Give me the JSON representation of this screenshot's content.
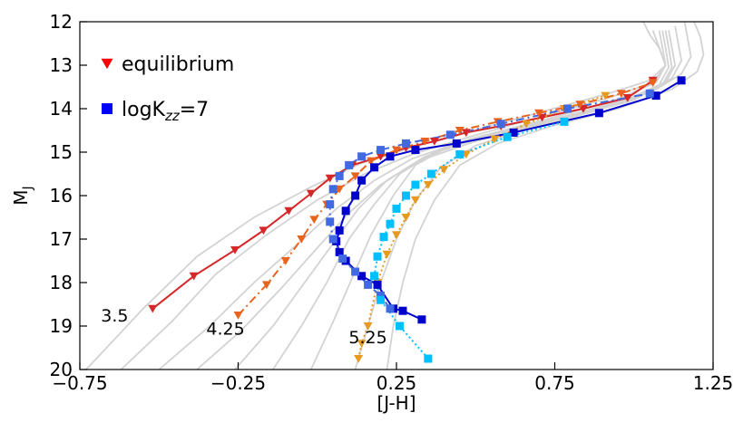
{
  "chart_data": {
    "type": "line",
    "xlabel": "[J-H]",
    "ylabel": "M_J",
    "xlim": [
      -0.75,
      1.25
    ],
    "ylim": [
      20,
      12
    ],
    "y_inverted": true,
    "grid": false,
    "legend_position": "top-left",
    "xticks": [
      -0.75,
      -0.25,
      0.25,
      0.75,
      1.25
    ],
    "xtick_labels": [
      "−0.75",
      "−0.25",
      "0.25",
      "0.75",
      "1.25"
    ],
    "yticks": [
      12,
      13,
      14,
      15,
      16,
      17,
      18,
      19,
      20
    ],
    "ytick_labels": [
      "12",
      "13",
      "14",
      "15",
      "16",
      "17",
      "18",
      "19",
      "20"
    ],
    "legend": [
      {
        "label": "equilibrium",
        "marker": "triangle-down",
        "color": "#ff0000"
      },
      {
        "label": "logK",
        "sub": "zz",
        "suffix": "=7",
        "marker": "square",
        "color": "#0000ff"
      }
    ],
    "annotations": [
      {
        "text": "3.5",
        "x": -0.64,
        "y": 18.9
      },
      {
        "text": "4.25",
        "x": -0.29,
        "y": 19.2
      },
      {
        "text": "5.25",
        "x": 0.16,
        "y": 19.4
      }
    ],
    "background_tracks": [
      {
        "color": "#d3d3d3",
        "x": [
          -0.73,
          -0.55,
          -0.38,
          -0.2,
          -0.02,
          0.14,
          0.32,
          0.52,
          0.72,
          0.92,
          1.05,
          1.1,
          1.08,
          1.05,
          1.03
        ],
        "y": [
          20,
          18.6,
          17.4,
          16.5,
          15.8,
          15.25,
          14.85,
          14.45,
          14.05,
          13.65,
          13.35,
          13.0,
          12.6,
          12.3,
          12.0
        ]
      },
      {
        "color": "#d3d3d3",
        "x": [
          -0.62,
          -0.46,
          -0.32,
          -0.16,
          0.0,
          0.15,
          0.3,
          0.48,
          0.7,
          0.92,
          1.06,
          1.1,
          1.08,
          1.06
        ],
        "y": [
          20,
          18.9,
          17.8,
          16.9,
          16.1,
          15.5,
          15.05,
          14.65,
          14.2,
          13.75,
          13.4,
          13.0,
          12.6,
          12.2
        ]
      },
      {
        "color": "#d3d3d3",
        "x": [
          -0.5,
          -0.34,
          -0.2,
          -0.06,
          0.06,
          0.18,
          0.3,
          0.48,
          0.72,
          0.94,
          1.07,
          1.1,
          1.09,
          1.08
        ],
        "y": [
          20,
          19.0,
          18.0,
          17.1,
          16.3,
          15.65,
          15.15,
          14.7,
          14.25,
          13.8,
          13.4,
          13.0,
          12.6,
          12.2
        ]
      },
      {
        "color": "#d3d3d3",
        "x": [
          -0.38,
          -0.24,
          -0.11,
          0.0,
          0.1,
          0.2,
          0.32,
          0.5,
          0.74,
          0.96,
          1.08,
          1.11,
          1.1,
          1.09
        ],
        "y": [
          20,
          19.1,
          18.1,
          17.2,
          16.4,
          15.75,
          15.2,
          14.75,
          14.3,
          13.85,
          13.45,
          13.05,
          12.6,
          12.2
        ]
      },
      {
        "color": "#d3d3d3",
        "x": [
          -0.26,
          -0.14,
          -0.04,
          0.05,
          0.13,
          0.22,
          0.34,
          0.52,
          0.76,
          0.98,
          1.09,
          1.12,
          1.11,
          1.1
        ],
        "y": [
          20,
          19.0,
          18.0,
          17.1,
          16.3,
          15.65,
          15.1,
          14.65,
          14.25,
          13.85,
          13.45,
          13.05,
          12.6,
          12.2
        ]
      },
      {
        "color": "#d3d3d3",
        "x": [
          -0.14,
          -0.05,
          0.03,
          0.1,
          0.18,
          0.26,
          0.37,
          0.55,
          0.78,
          1.0,
          1.1,
          1.13,
          1.12,
          1.11
        ],
        "y": [
          20,
          19.0,
          18.0,
          17.0,
          16.2,
          15.5,
          15.0,
          14.6,
          14.2,
          13.8,
          13.4,
          13.0,
          12.6,
          12.2
        ]
      },
      {
        "color": "#d3d3d3",
        "x": [
          -0.02,
          0.05,
          0.11,
          0.17,
          0.24,
          0.31,
          0.42,
          0.6,
          0.82,
          1.02,
          1.12,
          1.15,
          1.14,
          1.13
        ],
        "y": [
          20,
          18.9,
          17.9,
          16.9,
          16.0,
          15.3,
          14.85,
          14.5,
          14.1,
          13.7,
          13.3,
          12.9,
          12.5,
          12.1
        ]
      },
      {
        "color": "#d3d3d3",
        "x": [
          0.12,
          0.16,
          0.2,
          0.25,
          0.31,
          0.39,
          0.5,
          0.67,
          0.88,
          1.06,
          1.15,
          1.18,
          1.17,
          1.16
        ],
        "y": [
          20,
          19.0,
          18.0,
          17.0,
          16.1,
          15.35,
          14.85,
          14.45,
          14.05,
          13.6,
          13.2,
          12.8,
          12.4,
          12.0
        ]
      },
      {
        "color": "#d3d3d3",
        "x": [
          0.22,
          0.24,
          0.27,
          0.31,
          0.37,
          0.45,
          0.57,
          0.74,
          0.95,
          1.12,
          1.2,
          1.22,
          1.21,
          1.19
        ],
        "y": [
          20,
          19.0,
          18.0,
          17.0,
          16.1,
          15.3,
          14.8,
          14.4,
          14.0,
          13.55,
          13.15,
          12.75,
          12.35,
          12.0
        ]
      }
    ],
    "series": [
      {
        "name": "equilibrium 3.5",
        "color": "#d62728",
        "dash": "solid",
        "marker": "triangle-down",
        "x": [
          -0.52,
          -0.39,
          -0.26,
          -0.17,
          -0.09,
          -0.02,
          0.04,
          0.11,
          0.2,
          0.28,
          0.37,
          0.47,
          0.58,
          0.71,
          0.84,
          0.98,
          1.06
        ],
        "y": [
          18.6,
          17.85,
          17.25,
          16.8,
          16.35,
          15.95,
          15.6,
          15.3,
          15.1,
          14.9,
          14.75,
          14.55,
          14.4,
          14.2,
          14.0,
          13.75,
          13.35
        ]
      },
      {
        "name": "equilibrium 4.25",
        "color": "#e8641e",
        "dash": "dashdot",
        "marker": "triangle-down",
        "x": [
          -0.25,
          -0.16,
          -0.1,
          -0.05,
          -0.01,
          0.03,
          0.07,
          0.12,
          0.17,
          0.25,
          0.34,
          0.45,
          0.57,
          0.7,
          0.83,
          0.96,
          1.06
        ],
        "y": [
          18.75,
          18.05,
          17.5,
          17.0,
          16.55,
          16.2,
          15.85,
          15.55,
          15.2,
          14.95,
          14.75,
          14.5,
          14.3,
          14.1,
          13.9,
          13.65,
          13.4
        ]
      },
      {
        "name": "equilibrium 5.25",
        "color": "#e69a20",
        "dash": "dotted",
        "marker": "triangle-down",
        "x": [
          0.13,
          0.14,
          0.16,
          0.19,
          0.22,
          0.25,
          0.28,
          0.31,
          0.35,
          0.4,
          0.47,
          0.56,
          0.66,
          0.78,
          0.91
        ],
        "y": [
          19.75,
          19.4,
          19.0,
          18.0,
          17.35,
          16.9,
          16.5,
          16.1,
          15.75,
          15.4,
          15.05,
          14.7,
          14.35,
          14.0,
          13.7
        ]
      },
      {
        "name": "logKzz=7 3.5",
        "color": "#0000cd",
        "dash": "solid",
        "marker": "square",
        "x": [
          0.33,
          0.27,
          0.24,
          0.19,
          0.14,
          0.09,
          0.07,
          0.06,
          0.07,
          0.09,
          0.12,
          0.14,
          0.18,
          0.23,
          0.31,
          0.44,
          0.62,
          0.89,
          1.07,
          1.15
        ],
        "y": [
          18.85,
          18.65,
          18.6,
          18.05,
          17.85,
          17.5,
          17.3,
          17.05,
          16.8,
          16.35,
          16.0,
          15.65,
          15.35,
          15.1,
          14.95,
          14.8,
          14.55,
          14.1,
          13.7,
          13.35
        ]
      },
      {
        "name": "logKzz=7 4.25",
        "color": "#4169e1",
        "dash": "dashdot",
        "marker": "square",
        "x": [
          0.23,
          0.2,
          0.16,
          0.12,
          0.08,
          0.05,
          0.04,
          0.04,
          0.05,
          0.07,
          0.1,
          0.14,
          0.2,
          0.28,
          0.42,
          0.58,
          0.79,
          1.05
        ],
        "y": [
          18.6,
          18.3,
          18.05,
          17.75,
          17.45,
          17.0,
          16.6,
          16.2,
          15.85,
          15.55,
          15.3,
          15.1,
          14.95,
          14.8,
          14.6,
          14.35,
          14.0,
          13.65
        ]
      },
      {
        "name": "logKzz=7 5.25",
        "color": "#00bfff",
        "dash": "dotted",
        "marker": "square",
        "x": [
          0.35,
          0.26,
          0.2,
          0.18,
          0.19,
          0.21,
          0.23,
          0.25,
          0.28,
          0.31,
          0.36,
          0.45,
          0.6,
          0.78
        ],
        "y": [
          19.75,
          19.0,
          18.4,
          17.85,
          17.4,
          16.95,
          16.65,
          16.3,
          16.0,
          15.75,
          15.5,
          15.05,
          14.65,
          14.3
        ]
      }
    ]
  }
}
